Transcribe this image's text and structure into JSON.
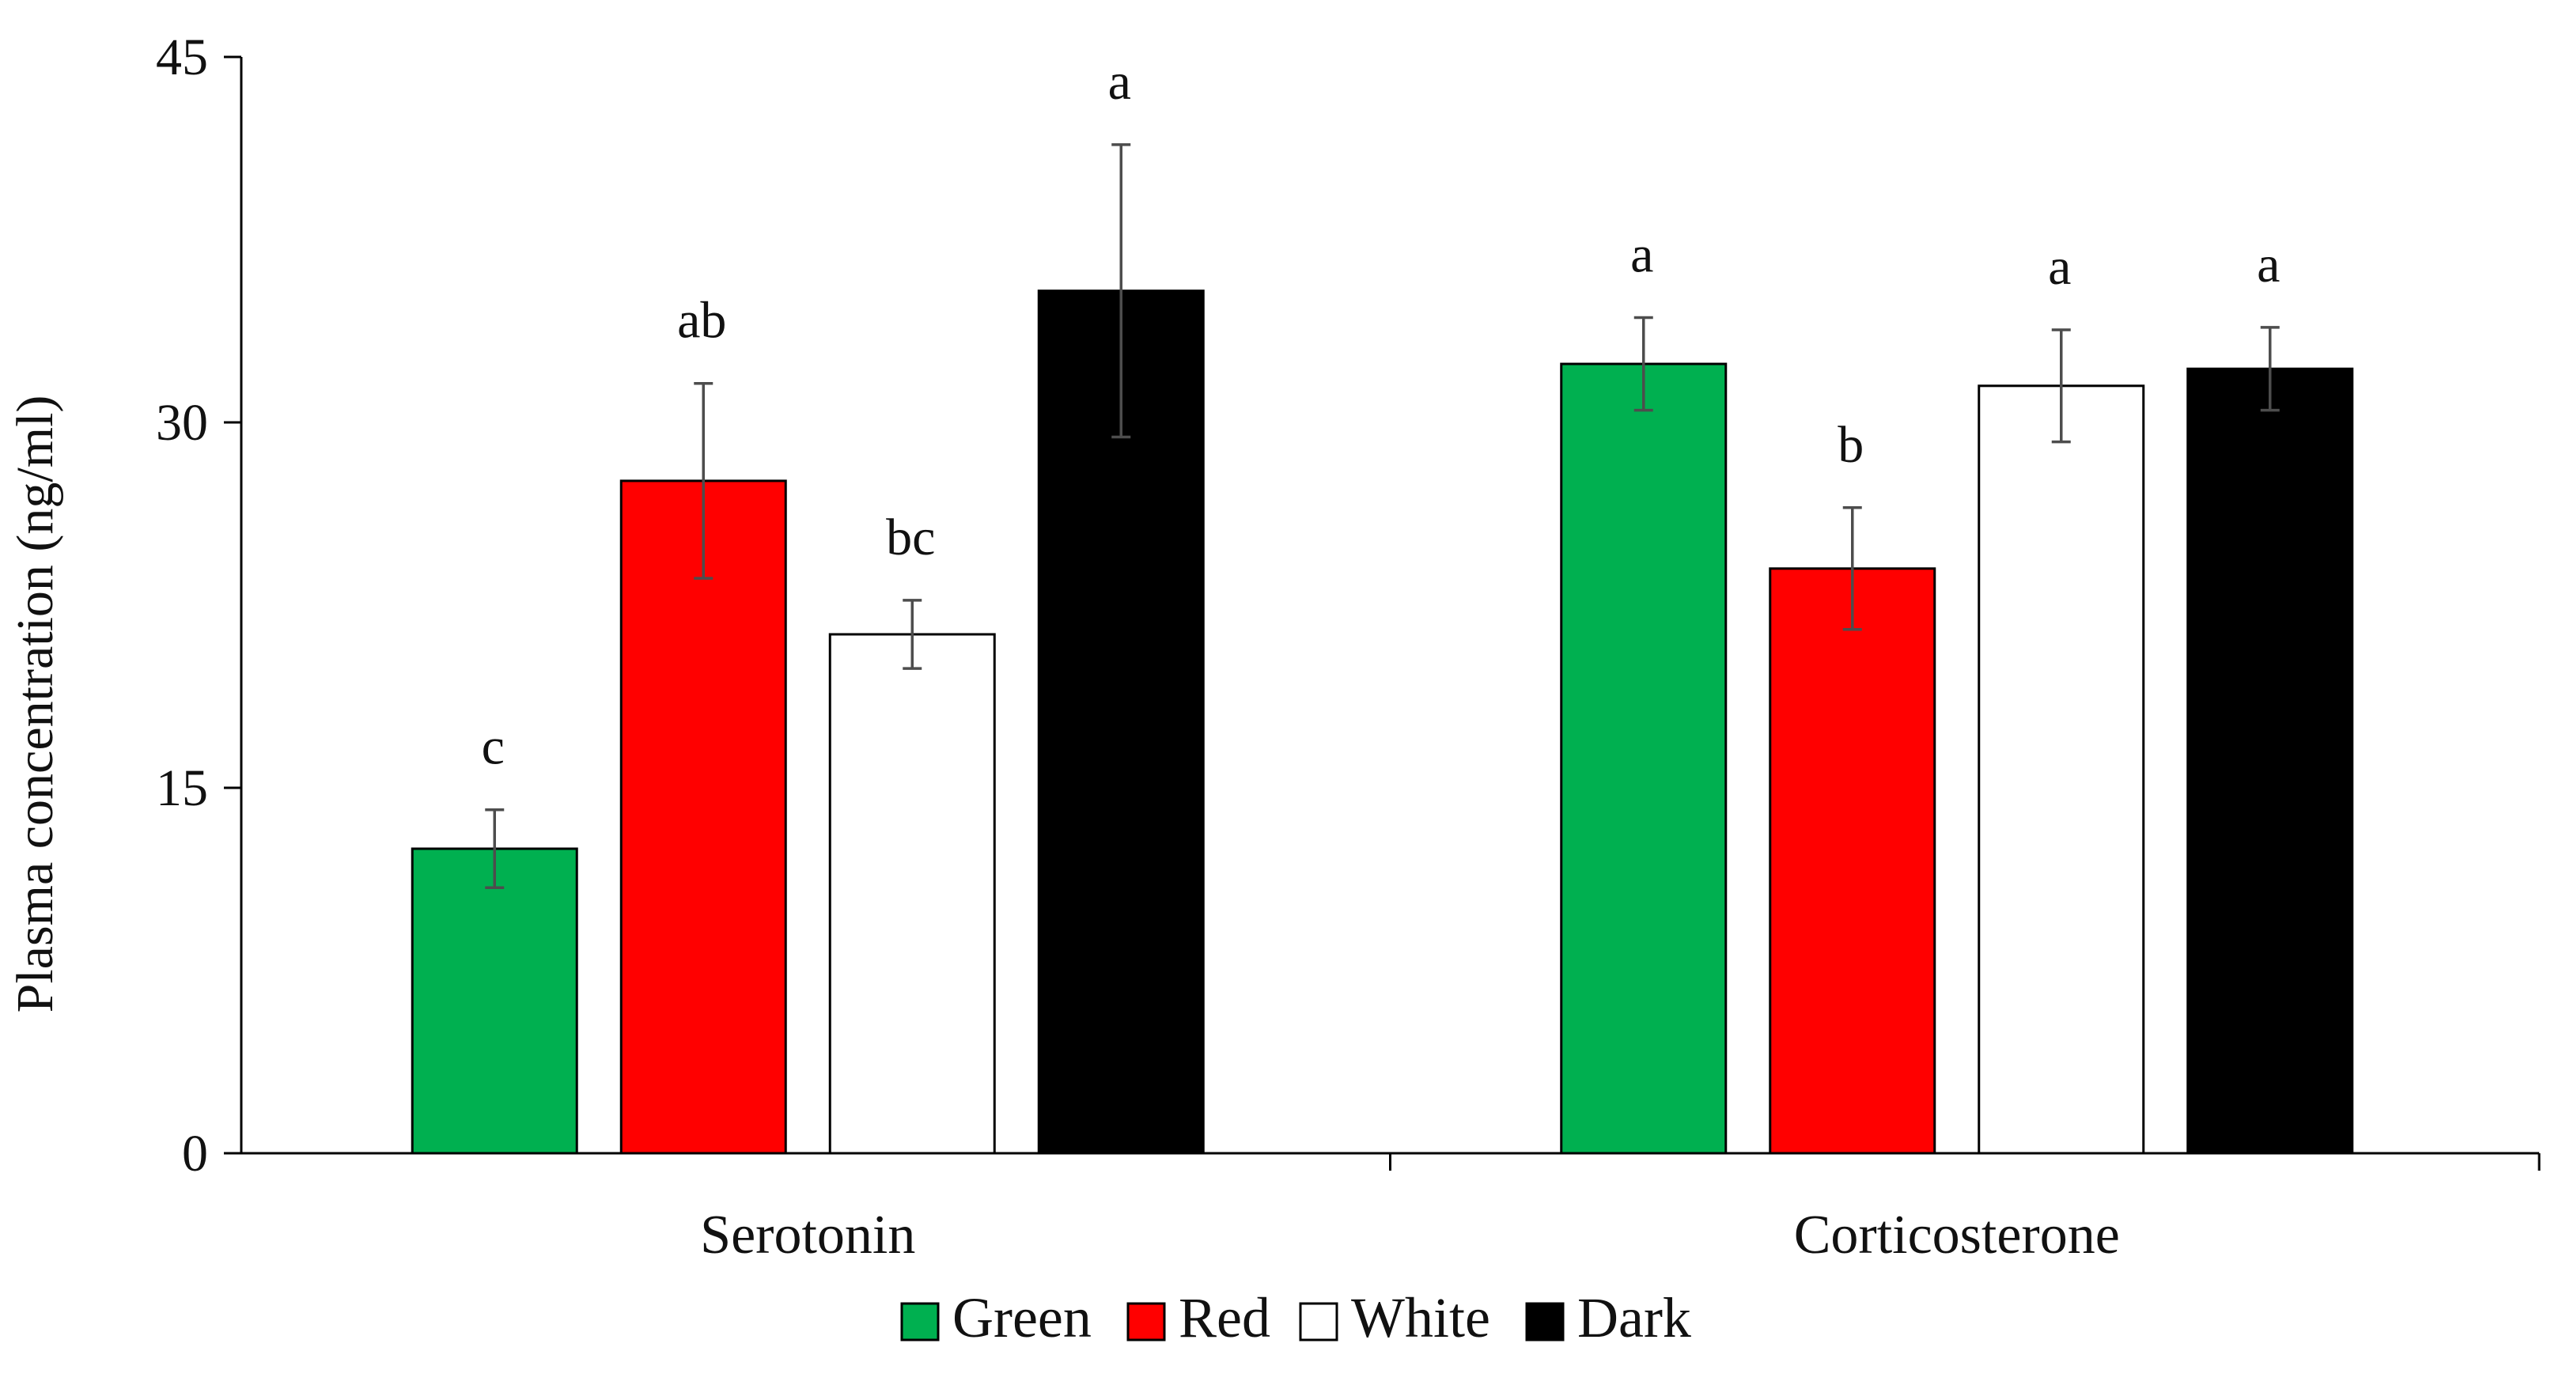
{
  "chart_data": {
    "type": "bar",
    "title": "",
    "xlabel": "",
    "ylabel": "Plasma concentration (ng/ml)",
    "ylim": [
      0,
      45
    ],
    "yticks": [
      0,
      15,
      30,
      45
    ],
    "grid": false,
    "legend_position": "bottom",
    "categories": [
      "Serotonin",
      "Corticosterone"
    ],
    "series": [
      {
        "name": "Green",
        "color": "#00b050",
        "values": [
          12.5,
          32.4
        ],
        "errors": [
          1.6,
          1.9
        ],
        "labels": [
          "c",
          "a"
        ]
      },
      {
        "name": "Red",
        "color": "#ff0000",
        "values": [
          27.6,
          24.0
        ],
        "errors": [
          4.0,
          2.5
        ],
        "labels": [
          "ab",
          "b"
        ]
      },
      {
        "name": "White",
        "color": "#ffffff",
        "values": [
          21.3,
          31.5
        ],
        "errors": [
          1.4,
          2.3
        ],
        "labels": [
          "bc",
          "a"
        ]
      },
      {
        "name": "Dark",
        "color": "#000000",
        "values": [
          35.4,
          32.2
        ],
        "errors": [
          6.0,
          1.7
        ],
        "labels": [
          "a",
          "a"
        ]
      }
    ]
  }
}
